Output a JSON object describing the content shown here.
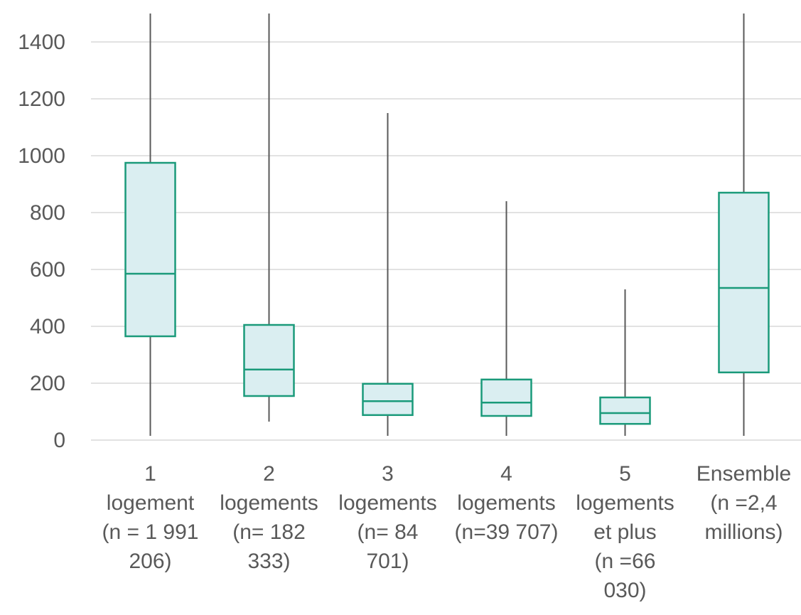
{
  "chart_data": {
    "type": "boxplot",
    "title": "",
    "xlabel": "",
    "ylabel": "",
    "ylim": [
      0,
      1500
    ],
    "yticks": [
      0,
      200,
      400,
      600,
      800,
      1000,
      1200,
      1400
    ],
    "grid": true,
    "colors": {
      "box_fill": "#daeef1",
      "box_stroke": "#1a9a7a",
      "whisker": "#595959",
      "grid": "#d9d9d9",
      "text": "#595959"
    },
    "categories": [
      {
        "label_lines": [
          "1",
          "logement",
          "(n = 1 991",
          "206)"
        ],
        "whisker_low": 15,
        "q1": 365,
        "median": 585,
        "q3": 975,
        "whisker_high": 1500
      },
      {
        "label_lines": [
          "2",
          "logements",
          "(n= 182",
          "333)"
        ],
        "whisker_low": 65,
        "q1": 155,
        "median": 248,
        "q3": 405,
        "whisker_high": 1500
      },
      {
        "label_lines": [
          "3",
          "logements",
          "(n= 84",
          "701)"
        ],
        "whisker_low": 15,
        "q1": 88,
        "median": 137,
        "q3": 198,
        "whisker_high": 1150
      },
      {
        "label_lines": [
          "4",
          "logements",
          "(n=39 707)"
        ],
        "whisker_low": 15,
        "q1": 85,
        "median": 132,
        "q3": 213,
        "whisker_high": 840
      },
      {
        "label_lines": [
          "5",
          "logements",
          "et plus",
          "(n =66",
          "030)"
        ],
        "whisker_low": 15,
        "q1": 57,
        "median": 95,
        "q3": 150,
        "whisker_high": 530
      },
      {
        "label_lines": [
          "Ensemble",
          "(n =2,4",
          "millions)"
        ],
        "whisker_low": 15,
        "q1": 238,
        "median": 535,
        "q3": 870,
        "whisker_high": 1500
      }
    ]
  }
}
